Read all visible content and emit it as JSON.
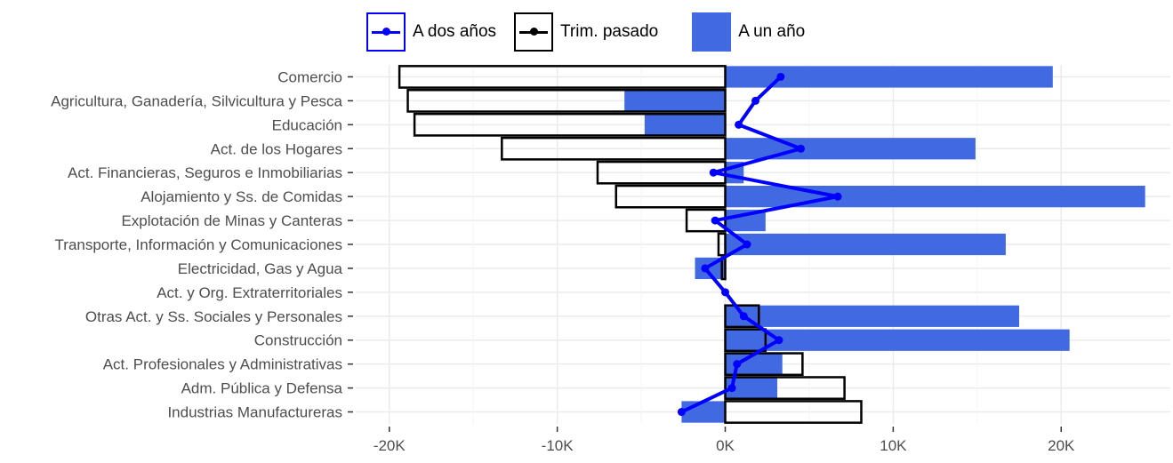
{
  "legend": {
    "a_dos_anos": "A dos años",
    "trim_pasado": "Trim. pasado",
    "a_un_ano": "A un año"
  },
  "colors": {
    "a_un_ano_fill": "#4169e1",
    "a_dos_anos_line": "#0000ff",
    "trim_pasado_outline": "#000000",
    "grid": "#ebebeb",
    "axis_text": "#4d4d4d"
  },
  "chart_data": {
    "type": "bar",
    "orientation": "horizontal",
    "categories": [
      "Comercio",
      "Agricultura, Ganadería, Silvicultura y Pesca",
      "Educación",
      "Act. de los Hogares",
      "Act. Financieras, Seguros e Inmobiliarias",
      "Alojamiento y Ss. de Comidas",
      "Explotación de Minas y Canteras",
      "Transporte, Información y Comunicaciones",
      "Electricidad, Gas y Agua",
      "Act. y Org. Extraterritoriales",
      "Otras Act. y Ss. Sociales y Personales",
      "Construcción",
      "Act. Profesionales y Administrativas",
      "Adm. Pública y Defensa",
      "Industrias Manufactureras"
    ],
    "series": [
      {
        "name": "A un año",
        "kind": "filled-bar",
        "values": [
          19500,
          -6000,
          -4800,
          14900,
          1100,
          25000,
          2400,
          16700,
          -1800,
          0,
          17500,
          20500,
          3400,
          3100,
          -2600
        ]
      },
      {
        "name": "Trim. pasado",
        "kind": "outline-bar",
        "values": [
          -19400,
          -18900,
          -18500,
          -13300,
          -7600,
          -6500,
          -2300,
          -400,
          -200,
          0,
          2000,
          2400,
          4600,
          7100,
          8100
        ]
      },
      {
        "name": "A dos años",
        "kind": "line",
        "values": [
          3300,
          1800,
          800,
          4500,
          -700,
          6700,
          -600,
          1300,
          -1200,
          0,
          1100,
          3200,
          700,
          400,
          -2600
        ]
      }
    ],
    "xlim": [
      -22000,
      26500
    ],
    "xticks": [
      -20000,
      -10000,
      0,
      10000,
      20000
    ],
    "xtick_labels": [
      "-20K",
      "-10K",
      "0K",
      "10K",
      "20K"
    ],
    "grid": true,
    "legend_position": "top"
  }
}
